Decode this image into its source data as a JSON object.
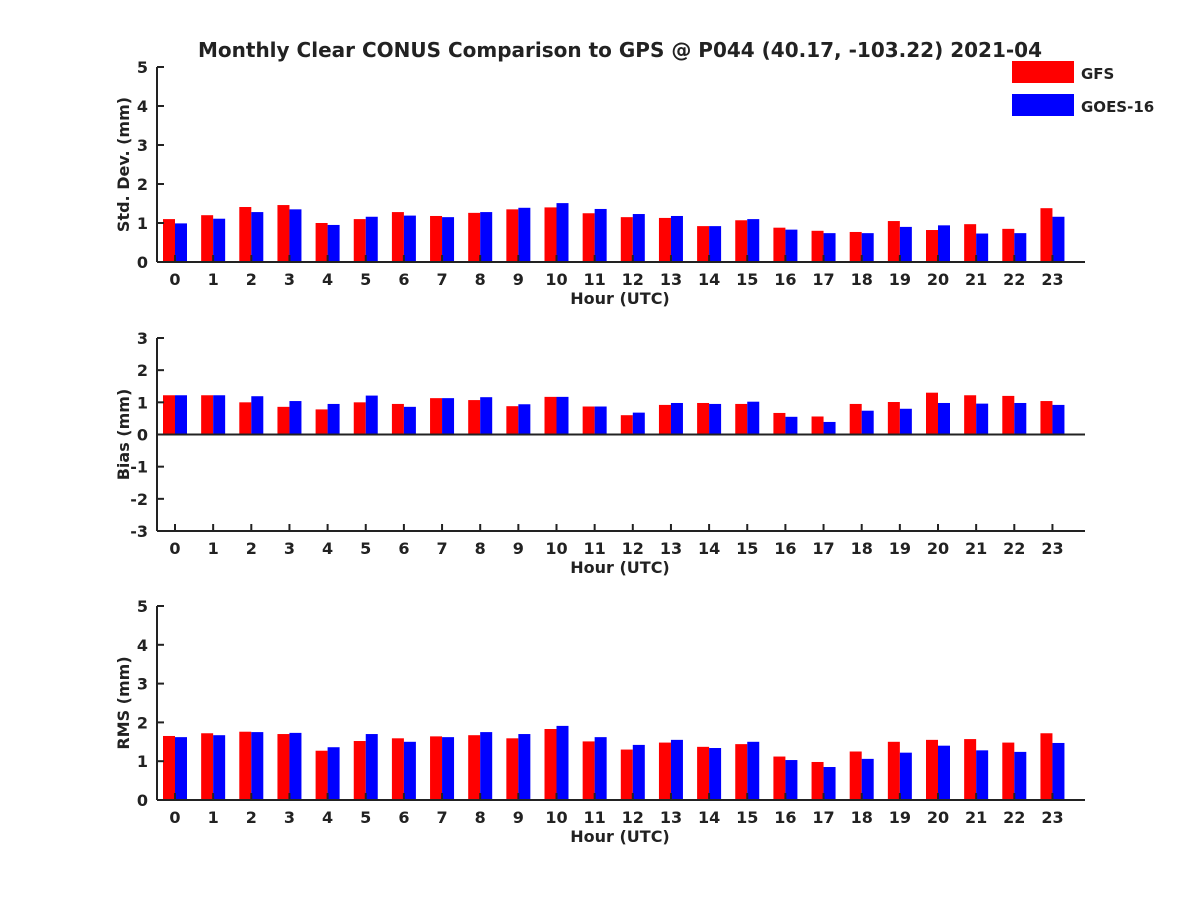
{
  "title": "Monthly Clear CONUS Comparison to GPS @ P044 (40.17, -103.22) 2021-04",
  "colors": {
    "gfs": "#ff0000",
    "goes": "#0000ff",
    "axis": "#222222"
  },
  "legend": {
    "placement": "top-right",
    "entries": [
      "GFS",
      "GOES-16"
    ]
  },
  "chart_data": [
    {
      "type": "bar",
      "ylabel": "Std. Dev. (mm)",
      "xlabel": "Hour (UTC)",
      "ylim": [
        0,
        5
      ],
      "yticks": [
        "0",
        "1",
        "2",
        "3",
        "4",
        "5"
      ],
      "categories": [
        "0",
        "1",
        "2",
        "3",
        "4",
        "5",
        "6",
        "7",
        "8",
        "9",
        "10",
        "11",
        "12",
        "13",
        "14",
        "15",
        "16",
        "17",
        "18",
        "19",
        "20",
        "21",
        "22",
        "23"
      ],
      "series": [
        {
          "name": "GFS",
          "values": [
            1.1,
            1.2,
            1.41,
            1.46,
            1.0,
            1.1,
            1.28,
            1.18,
            1.26,
            1.35,
            1.4,
            1.25,
            1.15,
            1.13,
            0.92,
            1.07,
            0.88,
            0.8,
            0.77,
            1.05,
            0.82,
            0.97,
            0.85,
            1.38
          ]
        },
        {
          "name": "GOES-16",
          "values": [
            0.99,
            1.11,
            1.28,
            1.35,
            0.95,
            1.16,
            1.19,
            1.15,
            1.28,
            1.39,
            1.51,
            1.36,
            1.23,
            1.18,
            0.92,
            1.1,
            0.83,
            0.74,
            0.74,
            0.9,
            0.94,
            0.73,
            0.74,
            1.16
          ]
        }
      ]
    },
    {
      "type": "bar",
      "ylabel": "Bias (mm)",
      "xlabel": "Hour (UTC)",
      "ylim": [
        -3,
        3
      ],
      "yticks": [
        "-3",
        "-2",
        "-1",
        "0",
        "1",
        "2",
        "3"
      ],
      "categories": [
        "0",
        "1",
        "2",
        "3",
        "4",
        "5",
        "6",
        "7",
        "8",
        "9",
        "10",
        "11",
        "12",
        "13",
        "14",
        "15",
        "16",
        "17",
        "18",
        "19",
        "20",
        "21",
        "22",
        "23"
      ],
      "series": [
        {
          "name": "GFS",
          "values": [
            1.22,
            1.22,
            1.0,
            0.86,
            0.78,
            1.0,
            0.95,
            1.13,
            1.07,
            0.88,
            1.17,
            0.87,
            0.6,
            0.92,
            0.98,
            0.95,
            0.67,
            0.56,
            0.95,
            1.01,
            1.3,
            1.22,
            1.2,
            1.04
          ]
        },
        {
          "name": "GOES-16",
          "values": [
            1.22,
            1.22,
            1.19,
            1.04,
            0.95,
            1.21,
            0.86,
            1.13,
            1.16,
            0.94,
            1.17,
            0.87,
            0.68,
            0.98,
            0.95,
            1.02,
            0.55,
            0.39,
            0.74,
            0.8,
            0.98,
            0.96,
            0.98,
            0.92
          ]
        }
      ]
    },
    {
      "type": "bar",
      "ylabel": "RMS (mm)",
      "xlabel": "Hour (UTC)",
      "ylim": [
        0,
        5
      ],
      "yticks": [
        "0",
        "1",
        "2",
        "3",
        "4",
        "5"
      ],
      "categories": [
        "0",
        "1",
        "2",
        "3",
        "4",
        "5",
        "6",
        "7",
        "8",
        "9",
        "10",
        "11",
        "12",
        "13",
        "14",
        "15",
        "16",
        "17",
        "18",
        "19",
        "20",
        "21",
        "22",
        "23"
      ],
      "series": [
        {
          "name": "GFS",
          "values": [
            1.65,
            1.72,
            1.76,
            1.7,
            1.27,
            1.52,
            1.59,
            1.64,
            1.67,
            1.59,
            1.83,
            1.51,
            1.3,
            1.48,
            1.37,
            1.44,
            1.12,
            0.98,
            1.25,
            1.5,
            1.55,
            1.57,
            1.48,
            1.72
          ]
        },
        {
          "name": "GOES-16",
          "values": [
            1.62,
            1.67,
            1.75,
            1.73,
            1.36,
            1.7,
            1.5,
            1.62,
            1.75,
            1.7,
            1.91,
            1.62,
            1.42,
            1.55,
            1.34,
            1.5,
            1.03,
            0.85,
            1.06,
            1.22,
            1.4,
            1.28,
            1.24,
            1.47
          ]
        }
      ]
    }
  ]
}
